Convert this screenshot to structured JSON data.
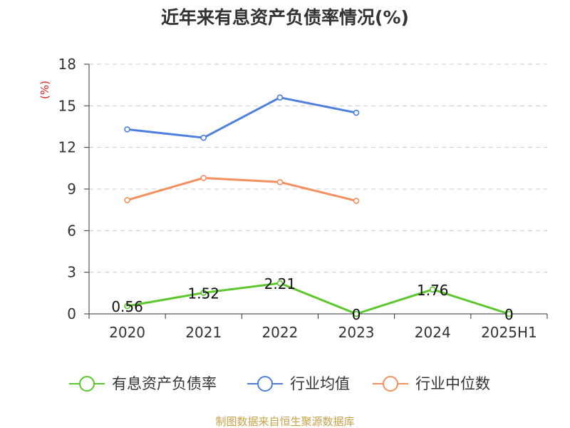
{
  "chart_data": {
    "type": "line",
    "title": "近年来有息资产负债率情况(%)",
    "ylabel": "(%)",
    "categories": [
      "2020",
      "2021",
      "2022",
      "2023",
      "2024",
      "2025H1"
    ],
    "ylim": [
      0,
      18
    ],
    "yticks": [
      0,
      3,
      6,
      9,
      12,
      15,
      18
    ],
    "grid": true,
    "legend_position": "bottom",
    "series": [
      {
        "name": "有息资产负债率",
        "color": "#5cc62d",
        "values": [
          0.56,
          1.52,
          2.21,
          0,
          1.76,
          0
        ],
        "labels": [
          "0.56",
          "1.52",
          "2.21",
          "0",
          "1.76",
          "0"
        ]
      },
      {
        "name": "行业均值",
        "color": "#4e7fdc",
        "values": [
          13.3,
          12.7,
          15.6,
          14.5,
          null,
          null
        ]
      },
      {
        "name": "行业中位数",
        "color": "#f4905f",
        "values": [
          8.2,
          9.8,
          9.5,
          8.15,
          null,
          null
        ]
      }
    ]
  },
  "source": "制图数据来自恒生聚源数据库",
  "colors": {
    "ylabel": "#e02020",
    "source": "#c8a24a",
    "axis": "#333333",
    "grid": "#cccccc"
  }
}
